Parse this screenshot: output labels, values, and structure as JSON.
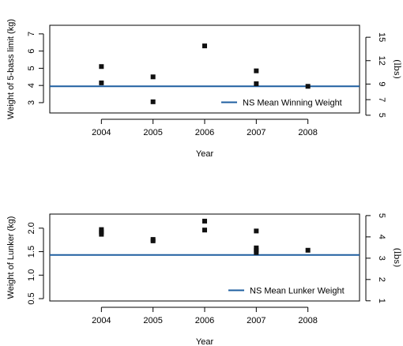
{
  "chart_data": [
    {
      "type": "scatter",
      "xlabel": "Year",
      "ylabel": "Weight of 5-bass limit (kg)",
      "y2label": "(lbs)",
      "xlim": [
        2003,
        2009
      ],
      "ylim": [
        2.4,
        7.5
      ],
      "xticks": [
        "2004",
        "2005",
        "2006",
        "2007",
        "2008"
      ],
      "yticks": [
        "3",
        "4",
        "5",
        "6",
        "7"
      ],
      "y2ticks": [
        "5",
        "7",
        "9",
        "12",
        "15"
      ],
      "y2tick_kg": [
        2.268,
        3.175,
        4.082,
        5.443,
        6.804
      ],
      "grid": false,
      "legend_position": "bottom-right",
      "series": [
        {
          "x": [
            2004,
            2004,
            2005,
            2005,
            2006,
            2007,
            2007,
            2008
          ],
          "y": [
            5.1,
            4.15,
            4.5,
            3.05,
            6.3,
            4.85,
            4.1,
            3.95
          ]
        }
      ],
      "reference_line": {
        "name": "NS Mean Winning Weight",
        "y": 3.95,
        "color": "#1f5fa0"
      }
    },
    {
      "type": "scatter",
      "xlabel": "Year",
      "ylabel": "Weight of Lunker (kg)",
      "y2label": "(lbs)",
      "xlim": [
        2003,
        2009
      ],
      "ylim": [
        0.45,
        2.3
      ],
      "xticks": [
        "2004",
        "2005",
        "2006",
        "2007",
        "2008"
      ],
      "yticks": [
        "0.5",
        "1.0",
        "1.5",
        "2.0"
      ],
      "y2ticks": [
        "1",
        "2",
        "3",
        "4",
        "5"
      ],
      "y2tick_kg": [
        0.4536,
        0.9072,
        1.3608,
        1.8144,
        2.268
      ],
      "grid": false,
      "legend_position": "bottom-right",
      "series": [
        {
          "x": [
            2004,
            2004,
            2004,
            2005,
            2005,
            2006,
            2006,
            2007,
            2007,
            2007,
            2007,
            2008
          ],
          "y": [
            1.97,
            1.92,
            1.87,
            1.76,
            1.73,
            2.15,
            1.96,
            1.94,
            1.58,
            1.53,
            1.48,
            1.53
          ]
        }
      ],
      "reference_line": {
        "name": "NS Mean Lunker Weight",
        "y": 1.43,
        "color": "#1f5fa0"
      }
    }
  ]
}
